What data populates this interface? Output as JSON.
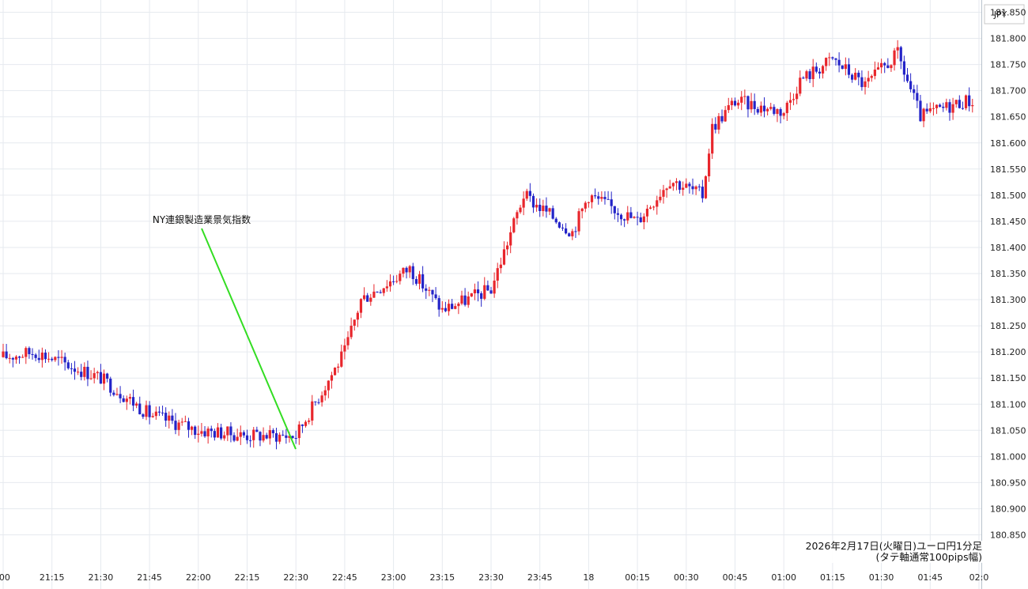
{
  "chart_data": {
    "type": "candlestick",
    "currency_label": "JPY",
    "caption_line1": "2026年2月17日(火曜日)ユーロ円1分足",
    "caption_line2": "(タテ軸通常100pips幅)",
    "annotation": "NY連銀製造業景気指数",
    "y_ticks": [
      "181.850",
      "181.800",
      "181.750",
      "181.700",
      "181.650",
      "181.600",
      "181.550",
      "181.500",
      "181.450",
      "181.400",
      "181.350",
      "181.300",
      "181.250",
      "181.200",
      "181.150",
      "181.100",
      "181.050",
      "181.000",
      "180.950",
      "180.900",
      "180.850"
    ],
    "x_ticks": [
      ":00",
      "21:15",
      "21:30",
      "21:45",
      "22:00",
      "22:15",
      "22:30",
      "22:45",
      "23:00",
      "23:15",
      "23:30",
      "23:45",
      "18",
      "00:15",
      "00:30",
      "00:45",
      "01:00",
      "01:15",
      "01:30",
      "01:45",
      "02:0"
    ],
    "ylim": [
      180.85,
      181.85
    ],
    "up_color": "#e8262c",
    "down_color": "#2424c8",
    "annotation_line_color": "#33dd22",
    "key_prices": [
      {
        "time": "21:00",
        "price": 181.19
      },
      {
        "time": "21:10",
        "price": 181.2
      },
      {
        "time": "21:30",
        "price": 181.15
      },
      {
        "time": "21:45",
        "price": 181.08
      },
      {
        "time": "22:00",
        "price": 181.05
      },
      {
        "time": "22:15",
        "price": 181.04
      },
      {
        "time": "22:30",
        "price": 181.04
      },
      {
        "time": "22:45",
        "price": 181.2
      },
      {
        "time": "22:50",
        "price": 181.3
      },
      {
        "time": "23:05",
        "price": 181.36
      },
      {
        "time": "23:15",
        "price": 181.28
      },
      {
        "time": "23:30",
        "price": 181.32
      },
      {
        "time": "23:40",
        "price": 181.5
      },
      {
        "time": "23:55",
        "price": 181.43
      },
      {
        "time": "00:00",
        "price": 181.5
      },
      {
        "time": "00:15",
        "price": 181.45
      },
      {
        "time": "00:25",
        "price": 181.53
      },
      {
        "time": "00:35",
        "price": 181.5
      },
      {
        "time": "00:38",
        "price": 181.63
      },
      {
        "time": "00:45",
        "price": 181.68
      },
      {
        "time": "01:00",
        "price": 181.66
      },
      {
        "time": "01:05",
        "price": 181.72
      },
      {
        "time": "01:15",
        "price": 181.76
      },
      {
        "time": "01:25",
        "price": 181.71
      },
      {
        "time": "01:35",
        "price": 181.77
      },
      {
        "time": "01:42",
        "price": 181.65
      },
      {
        "time": "01:55",
        "price": 181.68
      }
    ]
  }
}
